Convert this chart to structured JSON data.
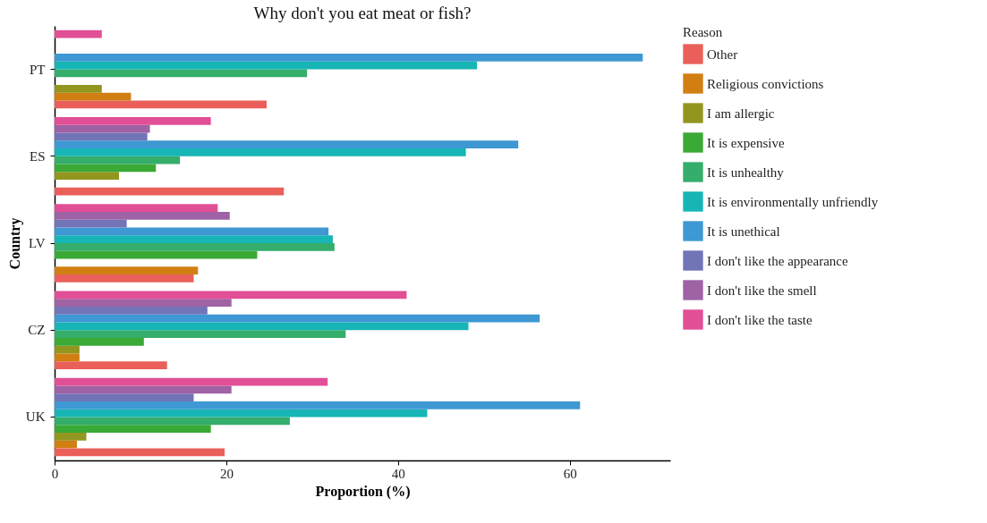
{
  "chart_data": {
    "type": "bar",
    "orientation": "horizontal",
    "title": "Why don't you eat meat or fish?",
    "xlabel": "Proportion (%)",
    "ylabel": "Country",
    "legend_title": "Reason",
    "legend": "right",
    "grid": false,
    "categories": [
      "PT",
      "ES",
      "LV",
      "CZ",
      "UK"
    ],
    "xlim": [
      0,
      71.7
    ],
    "xticks": [
      0,
      20,
      40,
      60
    ],
    "series": [
      {
        "name": "Other",
        "color": "#ea5f5a",
        "values": [
          24.7,
          26.7,
          16.2,
          13.1,
          19.8
        ]
      },
      {
        "name": "Religious convictions",
        "color": "#d17f12",
        "values": [
          8.9,
          null,
          16.7,
          2.9,
          2.6
        ]
      },
      {
        "name": "I am allergic",
        "color": "#92961f",
        "values": [
          5.5,
          7.5,
          null,
          2.9,
          3.7
        ]
      },
      {
        "name": "It is expensive",
        "color": "#3aa935",
        "values": [
          null,
          11.8,
          23.6,
          10.4,
          18.2
        ]
      },
      {
        "name": "It is unhealthy",
        "color": "#35ad6b",
        "values": [
          29.4,
          14.6,
          32.6,
          33.9,
          27.4
        ]
      },
      {
        "name": "It is environmentally unfriendly",
        "color": "#17b5b5",
        "values": [
          49.2,
          47.9,
          32.4,
          48.2,
          43.4
        ]
      },
      {
        "name": "It is unethical",
        "color": "#3e98d3",
        "values": [
          68.5,
          54.0,
          31.9,
          56.5,
          61.2
        ]
      },
      {
        "name": "I don't like the appearance",
        "color": "#7274b8",
        "values": [
          null,
          10.8,
          8.4,
          17.8,
          16.2
        ]
      },
      {
        "name": "I don't like the smell",
        "color": "#9e62a5",
        "values": [
          null,
          11.1,
          20.4,
          20.6,
          20.6
        ]
      },
      {
        "name": "I don't like the taste",
        "color": "#e14f96",
        "values": [
          5.5,
          18.2,
          19.0,
          41.0,
          31.8
        ]
      }
    ]
  }
}
